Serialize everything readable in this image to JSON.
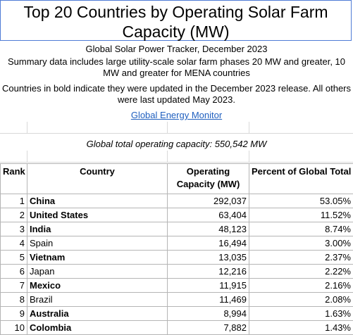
{
  "title": "Top 20 Countries by Operating Solar Farm Capacity (MW)",
  "subtitle": "Global Solar Power Tracker, December 2023",
  "summary": "Summary data includes large utility-scale solar farm phases 20 MW and greater, 10 MW and greater for MENA countries",
  "note": "Countries in bold indicate they were updated in the December 2023 release. All others were last updated May 2023.",
  "link_text": "Global Energy Monitor",
  "total_text": "Global total operating capacity: 550,542 MW",
  "table": {
    "headers": [
      "Rank",
      "Country",
      "Operating Capacity (MW)",
      "Percent of Global Total"
    ],
    "rows": [
      {
        "rank": "1",
        "country": "China",
        "capacity": "292,037",
        "percent": "53.05%",
        "bold": true
      },
      {
        "rank": "2",
        "country": "United States",
        "capacity": "63,404",
        "percent": "11.52%",
        "bold": true
      },
      {
        "rank": "3",
        "country": "India",
        "capacity": "48,123",
        "percent": "8.74%",
        "bold": true
      },
      {
        "rank": "4",
        "country": "Spain",
        "capacity": "16,494",
        "percent": "3.00%",
        "bold": false
      },
      {
        "rank": "5",
        "country": "Vietnam",
        "capacity": "13,035",
        "percent": "2.37%",
        "bold": true
      },
      {
        "rank": "6",
        "country": "Japan",
        "capacity": "12,216",
        "percent": "2.22%",
        "bold": false
      },
      {
        "rank": "7",
        "country": "Mexico",
        "capacity": "11,915",
        "percent": "2.16%",
        "bold": true
      },
      {
        "rank": "8",
        "country": "Brazil",
        "capacity": "11,469",
        "percent": "2.08%",
        "bold": false
      },
      {
        "rank": "9",
        "country": "Australia",
        "capacity": "8,994",
        "percent": "1.63%",
        "bold": true
      },
      {
        "rank": "10",
        "country": "Colombia",
        "capacity": "7,882",
        "percent": "1.43%",
        "bold": true
      }
    ]
  }
}
